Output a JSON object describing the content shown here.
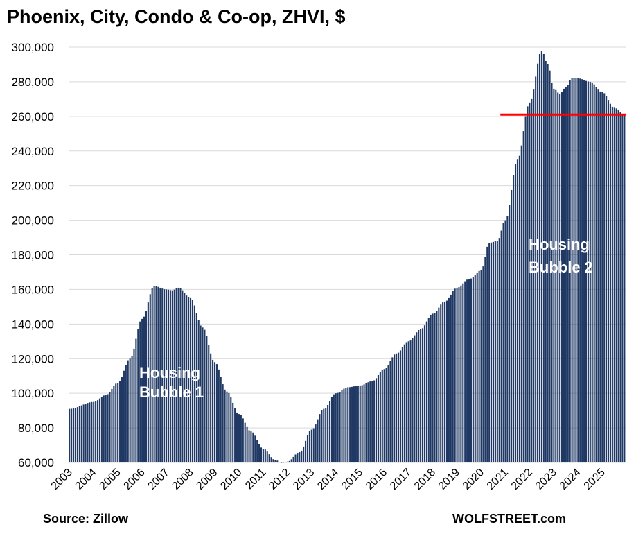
{
  "chart_data": {
    "type": "bar",
    "title": "Phoenix, City, Condo & Co-op, ZHVI, $",
    "xlabel": "",
    "ylabel": "",
    "ylim": [
      60000,
      300000
    ],
    "ytick_labels": [
      "60,000",
      "80,000",
      "100,000",
      "120,000",
      "140,000",
      "160,000",
      "180,000",
      "200,000",
      "220,000",
      "240,000",
      "260,000",
      "280,000",
      "300,000"
    ],
    "ytick_values": [
      60000,
      80000,
      100000,
      120000,
      140000,
      160000,
      180000,
      200000,
      220000,
      240000,
      260000,
      280000,
      300000
    ],
    "x_years": [
      "2003",
      "2004",
      "2005",
      "2006",
      "2007",
      "2008",
      "2009",
      "2010",
      "2011",
      "2012",
      "2013",
      "2014",
      "2015",
      "2016",
      "2017",
      "2018",
      "2019",
      "2020",
      "2021",
      "2022",
      "2023",
      "2024",
      "2025"
    ],
    "frequency": "monthly",
    "start": "2003-01",
    "grid": true,
    "bar_color": "#1f3864",
    "reference_line": {
      "value": 261000,
      "from": "2021-01",
      "to": "2025-12",
      "color": "#ff0000"
    },
    "anchors": [
      [
        "2003-01",
        91000
      ],
      [
        "2004-01",
        95000
      ],
      [
        "2004-07",
        99000
      ],
      [
        "2005-01",
        106000
      ],
      [
        "2005-07",
        120000
      ],
      [
        "2006-01",
        143000
      ],
      [
        "2006-07",
        162000
      ],
      [
        "2007-01",
        160000
      ],
      [
        "2007-04",
        159500
      ],
      [
        "2007-07",
        161000
      ],
      [
        "2008-01",
        155000
      ],
      [
        "2008-07",
        138000
      ],
      [
        "2009-01",
        118000
      ],
      [
        "2009-07",
        101000
      ],
      [
        "2010-01",
        88000
      ],
      [
        "2010-07",
        78000
      ],
      [
        "2011-01",
        68000
      ],
      [
        "2011-07",
        61500
      ],
      [
        "2011-10",
        60000
      ],
      [
        "2012-01",
        60500
      ],
      [
        "2012-07",
        66000
      ],
      [
        "2013-01",
        79000
      ],
      [
        "2013-07",
        91000
      ],
      [
        "2014-01",
        100000
      ],
      [
        "2014-07",
        103500
      ],
      [
        "2015-01",
        104500
      ],
      [
        "2015-07",
        107000
      ],
      [
        "2016-01",
        114000
      ],
      [
        "2016-07",
        123000
      ],
      [
        "2017-01",
        130000
      ],
      [
        "2017-07",
        137000
      ],
      [
        "2018-01",
        146000
      ],
      [
        "2018-07",
        153000
      ],
      [
        "2019-01",
        161000
      ],
      [
        "2019-07",
        166000
      ],
      [
        "2020-01",
        171000
      ],
      [
        "2020-05",
        187000
      ],
      [
        "2020-09",
        188000
      ],
      [
        "2021-01",
        200000
      ],
      [
        "2021-07",
        235000
      ],
      [
        "2022-01",
        268000
      ],
      [
        "2022-07",
        298000
      ],
      [
        "2022-10",
        290000
      ],
      [
        "2023-01",
        276000
      ],
      [
        "2023-04",
        273000
      ],
      [
        "2023-07",
        277000
      ],
      [
        "2023-10",
        282000
      ],
      [
        "2024-01",
        282000
      ],
      [
        "2024-07",
        280000
      ],
      [
        "2025-01",
        274000
      ],
      [
        "2025-07",
        265000
      ],
      [
        "2025-12",
        261000
      ]
    ],
    "annotations": [
      {
        "lines": [
          "Housing",
          "Bubble 1"
        ]
      },
      {
        "lines": [
          "Housing",
          "Bubble 2"
        ]
      }
    ]
  },
  "footer": {
    "source": "Source: Zillow",
    "brand": "WOLFSTREET.com"
  }
}
